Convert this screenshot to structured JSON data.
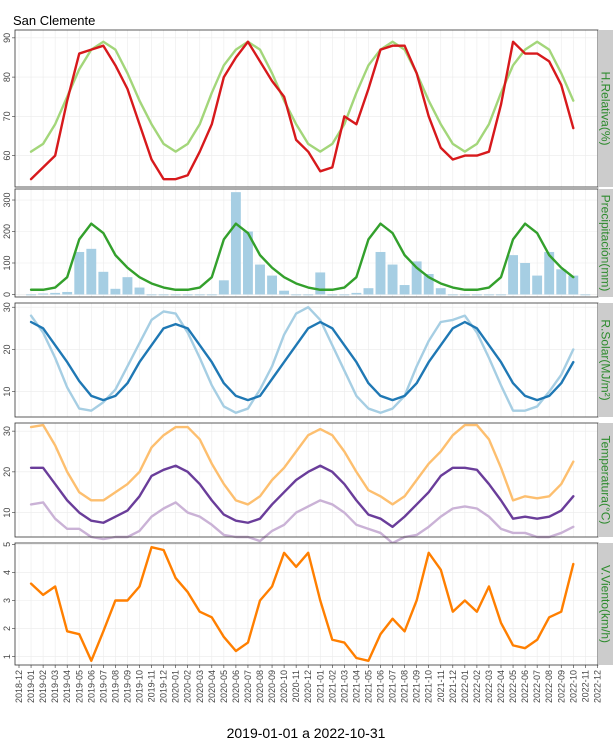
{
  "figure": {
    "title": "San Clemente",
    "xlabel": "2019-01-01 a 2022-10-31",
    "x_ticks": [
      "2018-12",
      "2019-01",
      "2019-02",
      "2019-03",
      "2019-04",
      "2019-05",
      "2019-06",
      "2019-07",
      "2019-08",
      "2019-09",
      "2019-10",
      "2019-11",
      "2019-12",
      "2020-01",
      "2020-02",
      "2020-03",
      "2020-04",
      "2020-05",
      "2020-06",
      "2020-07",
      "2020-08",
      "2020-09",
      "2020-10",
      "2020-11",
      "2020-12",
      "2021-01",
      "2021-02",
      "2021-03",
      "2021-04",
      "2021-05",
      "2021-06",
      "2021-07",
      "2021-08",
      "2021-09",
      "2021-10",
      "2021-11",
      "2021-12",
      "2022-01",
      "2022-02",
      "2022-03",
      "2022-04",
      "2022-05",
      "2022-06",
      "2022-07",
      "2022-08",
      "2022-09",
      "2022-10",
      "2022-11",
      "2022-12"
    ],
    "colors": {
      "strip_bg": "#cccccc",
      "strip_text": "#2e8b2e",
      "panel_border": "#333333",
      "grid": "#ebebeb"
    }
  },
  "chart_data": [
    {
      "type": "line",
      "strip": "H.Relativa(%)",
      "ylim": [
        52,
        92
      ],
      "yticks": [
        60,
        70,
        80,
        90
      ],
      "series": [
        {
          "color": "#a3d67a",
          "values": [
            61,
            63,
            68,
            75,
            82,
            87,
            89,
            87,
            81,
            74,
            68,
            63,
            61,
            63,
            68,
            76,
            83,
            87,
            89,
            87,
            81,
            74,
            68,
            63,
            61,
            63,
            68,
            76,
            83,
            87,
            89,
            87,
            81,
            74,
            68,
            63,
            61,
            63,
            68,
            76,
            83,
            87,
            89,
            87,
            81,
            74
          ]
        },
        {
          "color": "#d7191c",
          "values": [
            54,
            57,
            60,
            74,
            86,
            87,
            88,
            83,
            77,
            68,
            59,
            54,
            54,
            55,
            61,
            68,
            80,
            85,
            89,
            84,
            79,
            75,
            64,
            61,
            56,
            57,
            70,
            68,
            77,
            87,
            88,
            88,
            81,
            70,
            62,
            59,
            60,
            60,
            61,
            73,
            89,
            86,
            86,
            84,
            78,
            67
          ]
        }
      ]
    },
    {
      "type": "bar+line",
      "strip": "Precipitación(mm)",
      "ylim": [
        -8,
        335
      ],
      "yticks": [
        0,
        100,
        200,
        300
      ],
      "bar_color": "#a6cee3",
      "line_color": "#33a02c",
      "bars": [
        0,
        3,
        5,
        8,
        135,
        145,
        72,
        18,
        55,
        22,
        0,
        0,
        0,
        0,
        0,
        0,
        45,
        325,
        200,
        95,
        60,
        12,
        0,
        0,
        70,
        0,
        0,
        5,
        20,
        135,
        95,
        30,
        105,
        65,
        20,
        0,
        0,
        0,
        0,
        0,
        125,
        100,
        60,
        135,
        80,
        60,
        0
      ],
      "line": [
        15,
        15,
        22,
        55,
        175,
        225,
        195,
        125,
        85,
        55,
        35,
        22,
        15,
        15,
        22,
        55,
        175,
        225,
        195,
        125,
        85,
        55,
        35,
        22,
        15,
        15,
        22,
        55,
        175,
        225,
        195,
        125,
        85,
        55,
        35,
        22,
        15,
        15,
        22,
        55,
        175,
        225,
        195,
        125,
        85,
        55
      ]
    },
    {
      "type": "line",
      "strip": "R.Solar(MJ/m²)",
      "ylim": [
        4,
        31
      ],
      "yticks": [
        10,
        20,
        30
      ],
      "series": [
        {
          "color": "#a6cee3",
          "values": [
            28,
            24,
            18,
            11,
            6,
            5.5,
            7.5,
            10.5,
            16,
            21.5,
            27,
            29,
            28.5,
            24,
            18,
            11.5,
            6.5,
            5,
            6,
            10.5,
            16,
            23.5,
            28.5,
            30,
            27,
            21,
            15,
            9,
            6,
            5,
            6,
            9,
            16,
            22,
            26.5,
            27,
            28,
            24,
            18,
            11.5,
            5.5,
            5.5,
            6.5,
            10,
            14,
            20
          ]
        },
        {
          "color": "#1f78b4",
          "values": [
            26.5,
            25,
            21,
            17,
            12.5,
            9,
            8,
            9,
            12,
            17,
            21,
            25,
            26,
            25,
            21,
            17,
            12,
            9,
            8,
            9,
            13,
            17,
            21,
            25,
            26.5,
            25,
            21,
            17,
            12,
            9,
            8,
            9,
            12,
            17,
            21,
            25,
            26.5,
            25,
            21,
            17,
            12,
            9,
            8,
            9,
            12,
            17
          ]
        }
      ]
    },
    {
      "type": "line",
      "strip": "Temperatura(°C)",
      "ylim": [
        4,
        32
      ],
      "yticks": [
        10,
        20,
        30
      ],
      "series": [
        {
          "color": "#fdbf6f",
          "values": [
            31,
            31.5,
            26.5,
            20,
            15,
            13,
            13,
            15,
            17,
            20,
            26,
            29,
            31,
            31,
            28,
            22,
            17,
            13,
            12,
            14,
            18,
            21,
            25,
            29,
            30.5,
            29,
            25,
            20,
            15.5,
            14,
            12,
            14,
            18,
            22,
            25,
            29,
            31.5,
            31.5,
            28,
            21,
            13,
            14,
            13.5,
            14,
            17,
            22.5
          ]
        },
        {
          "color": "#6a3d9a",
          "values": [
            21,
            21,
            17,
            13,
            10,
            8,
            7.5,
            9,
            10.5,
            14,
            19,
            20.5,
            21.5,
            20,
            17,
            13,
            9.5,
            8,
            7.5,
            8.5,
            12,
            15,
            18,
            20,
            21.5,
            20,
            17,
            13,
            9.5,
            8.5,
            6.5,
            9,
            12,
            15,
            19,
            21,
            21,
            20.5,
            17,
            13,
            8.5,
            9,
            8.5,
            9,
            10.5,
            14
          ]
        },
        {
          "color": "#cab2d6",
          "values": [
            12,
            12.5,
            8.5,
            6,
            6,
            4,
            3.5,
            4,
            4,
            5.5,
            9,
            11,
            12.5,
            10,
            9,
            7,
            4.5,
            4,
            4,
            3,
            5.5,
            7,
            10,
            11.5,
            13,
            12,
            10,
            7,
            6,
            5,
            2.5,
            4,
            4.5,
            6.5,
            9,
            11,
            11.5,
            11,
            9,
            6,
            5,
            5,
            4,
            4,
            5,
            6.5
          ]
        }
      ]
    },
    {
      "type": "line",
      "strip": "V.Viento(km/h)",
      "ylim": [
        0.7,
        5.05
      ],
      "yticks": [
        1,
        2,
        3,
        4,
        5
      ],
      "series": [
        {
          "color": "#ff7f00",
          "values": [
            3.6,
            3.2,
            3.5,
            1.9,
            1.8,
            0.85,
            1.9,
            3,
            3,
            3.5,
            4.9,
            4.8,
            3.8,
            3.3,
            2.6,
            2.4,
            1.7,
            1.2,
            1.5,
            3,
            3.5,
            4.7,
            4.2,
            4.7,
            3,
            1.6,
            1.5,
            0.95,
            0.85,
            1.8,
            2.35,
            1.9,
            3,
            4.7,
            4.1,
            2.6,
            3,
            2.6,
            3.5,
            2.2,
            1.4,
            1.3,
            1.6,
            2.4,
            2.6,
            4.3
          ]
        }
      ]
    }
  ]
}
